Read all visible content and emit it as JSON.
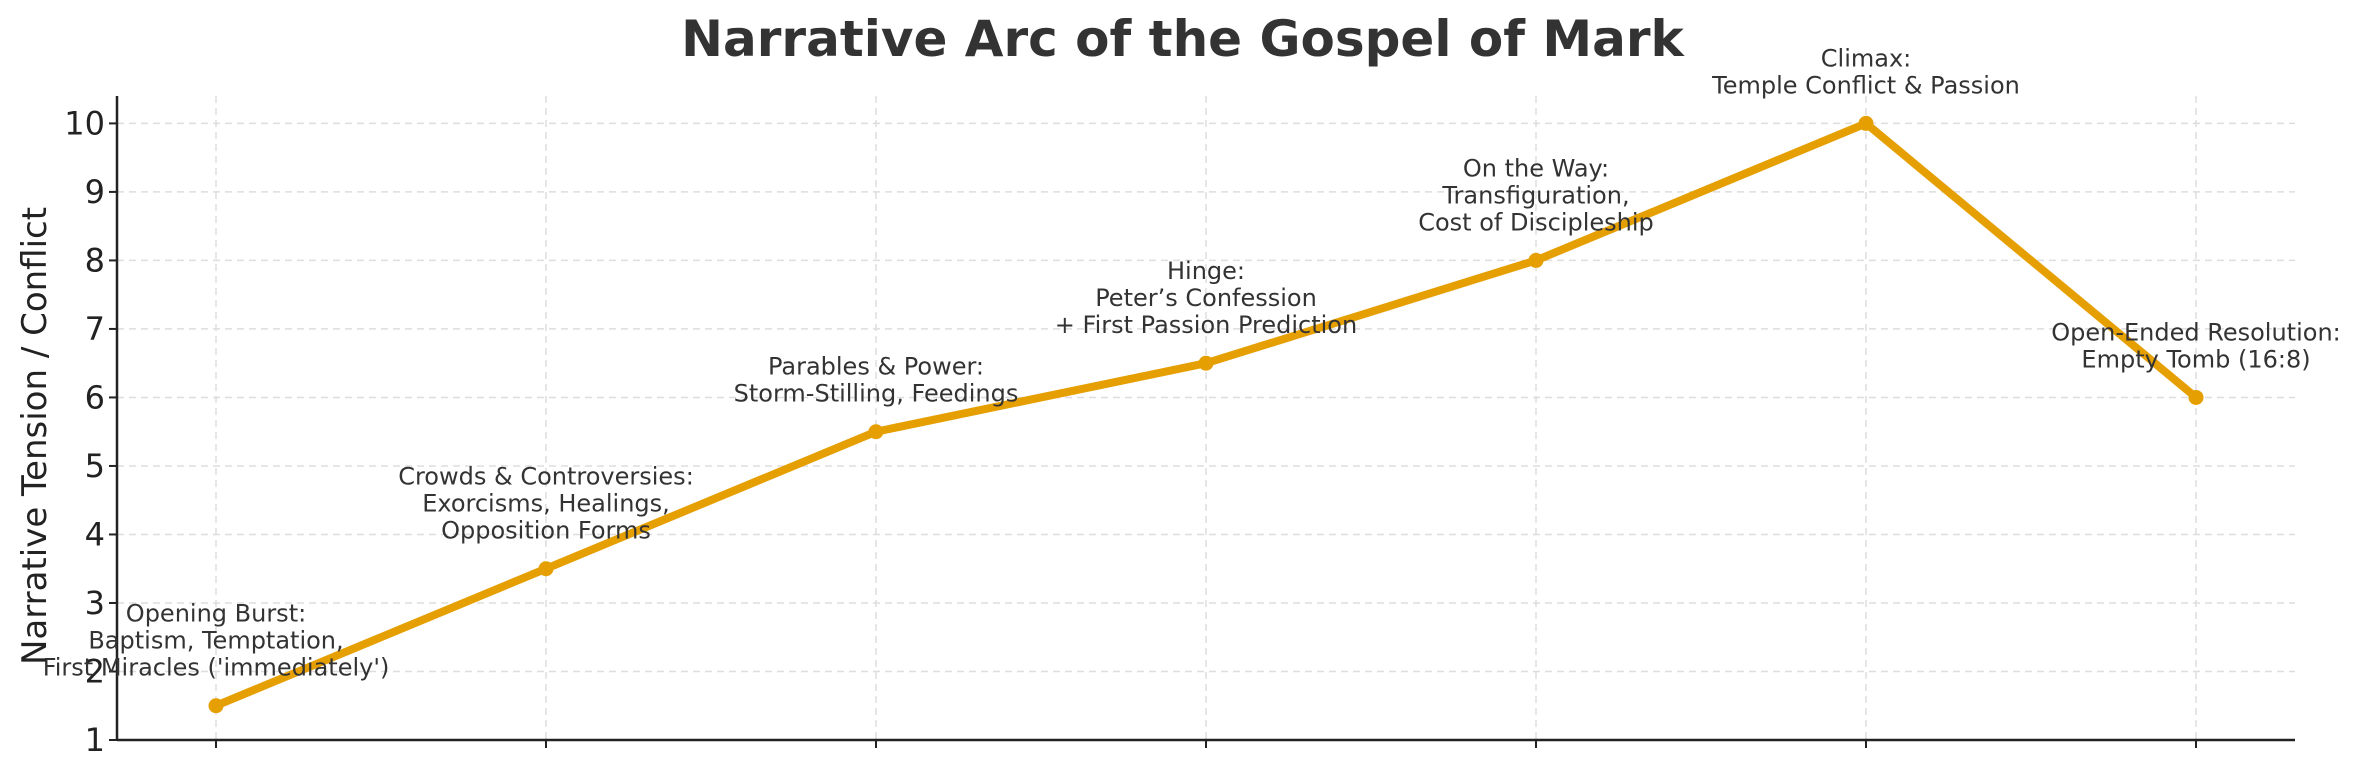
{
  "chart_data": {
    "type": "line",
    "title": "Narrative Arc of the Gospel of Mark",
    "xlabel": "",
    "ylabel": "Narrative Tension / Conflict",
    "ylim": [
      1,
      10.4
    ],
    "yticks": [
      1,
      2,
      3,
      4,
      5,
      6,
      7,
      8,
      9,
      10
    ],
    "grid": true,
    "line_color": "#E69F00",
    "points": [
      {
        "x": 1,
        "y": 1.5,
        "label": "Opening Burst:\nBaptism, Temptation,\nFirst Miracles ('immediately')"
      },
      {
        "x": 2,
        "y": 3.5,
        "label": "Crowds & Controversies:\nExorcisms, Healings,\nOpposition Forms"
      },
      {
        "x": 3,
        "y": 5.5,
        "label": "Parables & Power:\nStorm-Stilling, Feedings"
      },
      {
        "x": 4,
        "y": 6.5,
        "label": "Hinge:\nPeter’s Confession\n+ First Passion Prediction"
      },
      {
        "x": 5,
        "y": 8,
        "label": "On the Way:\nTransfiguration,\nCost of Discipleship"
      },
      {
        "x": 6,
        "y": 10,
        "label": "Climax:\nTemple Conflict & Passion"
      },
      {
        "x": 7,
        "y": 6,
        "label": "Open-Ended Resolution:\nEmpty Tomb (16:8)"
      }
    ]
  }
}
